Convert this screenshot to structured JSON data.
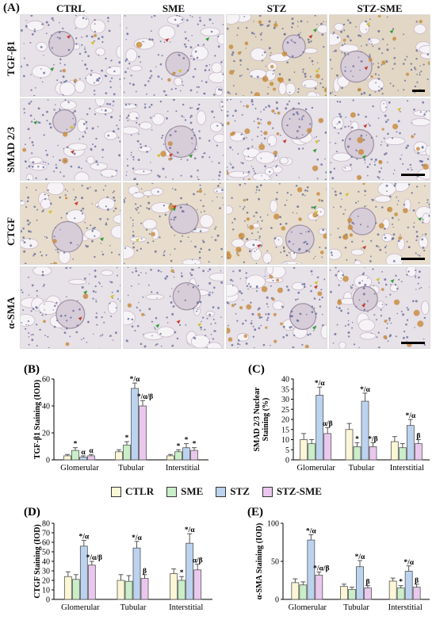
{
  "figure": {
    "panel_a_label": "(A)",
    "columns": [
      "CTRL",
      "SME",
      "STZ",
      "STZ-SME"
    ],
    "rows": [
      "TGF-β1",
      "SMAD 2/3",
      "CTGF",
      "α-SMA"
    ]
  },
  "legend": [
    "CTLR",
    "SME",
    "STZ",
    "STZ-SME"
  ],
  "colors": {
    "ctrl": "#fbf7d6",
    "sme": "#c9eec8",
    "stz": "#bcd3ef",
    "stzsme": "#eac8ee",
    "stain_bg": "#e7e1e8",
    "nuclei": "#5d6596",
    "brown": "#c7893a"
  },
  "chart_data": [
    {
      "type": "bar",
      "panel": "(B)",
      "ylabel": "TGF-β1 Staining (IOD)",
      "ylim": [
        0,
        60
      ],
      "yticks": [
        0,
        20,
        40,
        60
      ],
      "categories": [
        "Glomerular",
        "Tubular",
        "Interstitial"
      ],
      "series": [
        {
          "name": "CTLR",
          "values": [
            3,
            6,
            3
          ],
          "err": [
            1,
            1.5,
            1
          ]
        },
        {
          "name": "SME",
          "values": [
            7,
            11,
            6
          ],
          "err": [
            2,
            2.5,
            1.5
          ]
        },
        {
          "name": "STZ",
          "values": [
            2,
            53,
            9
          ],
          "err": [
            1,
            4,
            3
          ]
        },
        {
          "name": "STZ-SME",
          "values": [
            3,
            40,
            7
          ],
          "err": [
            1,
            4,
            2
          ]
        }
      ],
      "annotations": [
        {
          "cat": 0,
          "series": 1,
          "text": "*"
        },
        {
          "cat": 0,
          "series": 2,
          "text": "α"
        },
        {
          "cat": 0,
          "series": 3,
          "text": "α"
        },
        {
          "cat": 1,
          "series": 1,
          "text": "*"
        },
        {
          "cat": 1,
          "series": 2,
          "text": "*/α"
        },
        {
          "cat": 1,
          "series": 3,
          "text": "*/α/β"
        },
        {
          "cat": 2,
          "series": 1,
          "text": "*"
        },
        {
          "cat": 2,
          "series": 2,
          "text": "*"
        },
        {
          "cat": 2,
          "series": 3,
          "text": "*"
        }
      ]
    },
    {
      "type": "bar",
      "panel": "(C)",
      "ylabel": "SMAD 2/3 Nuclear Staining (%)",
      "ylim": [
        0,
        40
      ],
      "yticks": [
        0,
        5,
        10,
        15,
        20,
        25,
        30,
        35,
        40
      ],
      "categories": [
        "Glomerular",
        "Tubular",
        "Interstitial"
      ],
      "series": [
        {
          "name": "CTLR",
          "values": [
            10,
            15,
            9
          ],
          "err": [
            3,
            3,
            2.5
          ]
        },
        {
          "name": "SME",
          "values": [
            8,
            6.5,
            6
          ],
          "err": [
            2,
            2,
            2
          ]
        },
        {
          "name": "STZ",
          "values": [
            32,
            29,
            17
          ],
          "err": [
            4,
            4,
            3
          ]
        },
        {
          "name": "STZ-SME",
          "values": [
            13,
            6.5,
            8
          ],
          "err": [
            3,
            2,
            2
          ]
        }
      ],
      "annotations": [
        {
          "cat": 0,
          "series": 2,
          "text": "*/α"
        },
        {
          "cat": 0,
          "series": 3,
          "text": "α/β"
        },
        {
          "cat": 1,
          "series": 1,
          "text": "*"
        },
        {
          "cat": 1,
          "series": 2,
          "text": "*/α"
        },
        {
          "cat": 1,
          "series": 3,
          "text": "*/β"
        },
        {
          "cat": 2,
          "series": 2,
          "text": "*/α"
        },
        {
          "cat": 2,
          "series": 3,
          "text": "β"
        }
      ]
    },
    {
      "type": "bar",
      "panel": "(D)",
      "ylabel": "CTGF Staining (IOD)",
      "ylim": [
        0,
        80
      ],
      "yticks": [
        0,
        10,
        20,
        30,
        40,
        50,
        60,
        70,
        80
      ],
      "categories": [
        "Glomerular",
        "Tubular",
        "Interstitial"
      ],
      "series": [
        {
          "name": "CTLR",
          "values": [
            24,
            20,
            27
          ],
          "err": [
            5,
            6,
            5
          ]
        },
        {
          "name": "SME",
          "values": [
            21,
            19,
            20
          ],
          "err": [
            5,
            6,
            4
          ]
        },
        {
          "name": "STZ",
          "values": [
            56,
            54,
            59
          ],
          "err": [
            6,
            7,
            10
          ]
        },
        {
          "name": "STZ-SME",
          "values": [
            36,
            22,
            31
          ],
          "err": [
            4,
            4,
            6
          ]
        }
      ],
      "annotations": [
        {
          "cat": 0,
          "series": 2,
          "text": "*/α"
        },
        {
          "cat": 0,
          "series": 3,
          "text": "*/α/β"
        },
        {
          "cat": 1,
          "series": 2,
          "text": "*/α"
        },
        {
          "cat": 1,
          "series": 3,
          "text": "β"
        },
        {
          "cat": 2,
          "series": 1,
          "text": "*"
        },
        {
          "cat": 2,
          "series": 2,
          "text": "*/α"
        },
        {
          "cat": 2,
          "series": 3,
          "text": "α/β"
        }
      ]
    },
    {
      "type": "bar",
      "panel": "(E)",
      "ylabel": "α-SMA Staining (IOD)",
      "ylim": [
        0,
        100
      ],
      "yticks": [
        0,
        50,
        100
      ],
      "categories": [
        "Glomerular",
        "Tubular",
        "Interstitial"
      ],
      "series": [
        {
          "name": "CTLR",
          "values": [
            22,
            17,
            24
          ],
          "err": [
            5,
            3,
            4
          ]
        },
        {
          "name": "SME",
          "values": [
            19,
            13,
            15
          ],
          "err": [
            4,
            3,
            3
          ]
        },
        {
          "name": "STZ",
          "values": [
            78,
            43,
            37
          ],
          "err": [
            7,
            8,
            7
          ]
        },
        {
          "name": "STZ-SME",
          "values": [
            32,
            15,
            16
          ],
          "err": [
            4,
            3,
            4
          ]
        }
      ],
      "annotations": [
        {
          "cat": 0,
          "series": 2,
          "text": "*/α"
        },
        {
          "cat": 0,
          "series": 3,
          "text": "*/α/β"
        },
        {
          "cat": 1,
          "series": 2,
          "text": "*/α"
        },
        {
          "cat": 1,
          "series": 3,
          "text": "β"
        },
        {
          "cat": 2,
          "series": 1,
          "text": "*"
        },
        {
          "cat": 2,
          "series": 2,
          "text": "*/α"
        },
        {
          "cat": 2,
          "series": 3,
          "text": "β"
        }
      ]
    }
  ]
}
